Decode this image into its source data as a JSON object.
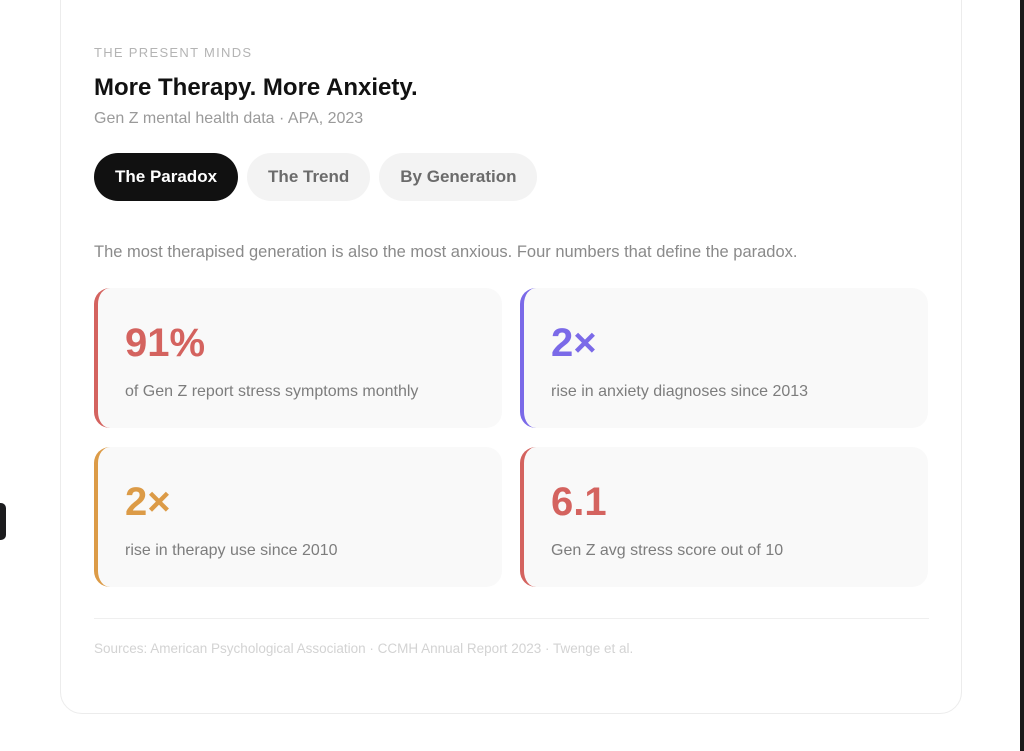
{
  "header": {
    "eyebrow": "THE PRESENT MINDS",
    "title": "More Therapy. More Anxiety.",
    "subtitle": "Gen Z mental health data · APA, 2023"
  },
  "tabs": [
    {
      "label": "The Paradox",
      "active": true
    },
    {
      "label": "The Trend",
      "active": false
    },
    {
      "label": "By Generation",
      "active": false
    }
  ],
  "intro": "The most therapised generation is also the most anxious. Four numbers that define the paradox.",
  "stats": [
    {
      "value": "91%",
      "label": "of Gen Z report stress symptoms monthly",
      "color": "#d4635f"
    },
    {
      "value": "2×",
      "label": "rise in anxiety diagnoses since 2013",
      "color": "#7b6ae8"
    },
    {
      "value": "2×",
      "label": "rise in therapy use since 2010",
      "color": "#dc9b47"
    },
    {
      "value": "6.1",
      "label": "Gen Z avg stress score out of 10",
      "color": "#d4635f"
    }
  ],
  "sources": "Sources: American Psychological Association · CCMH Annual Report 2023 · Twenge et al.",
  "colors": {
    "active_tab_bg": "#111111",
    "inactive_tab_bg": "#f3f3f3",
    "card_bg": "#f9f9f9"
  }
}
